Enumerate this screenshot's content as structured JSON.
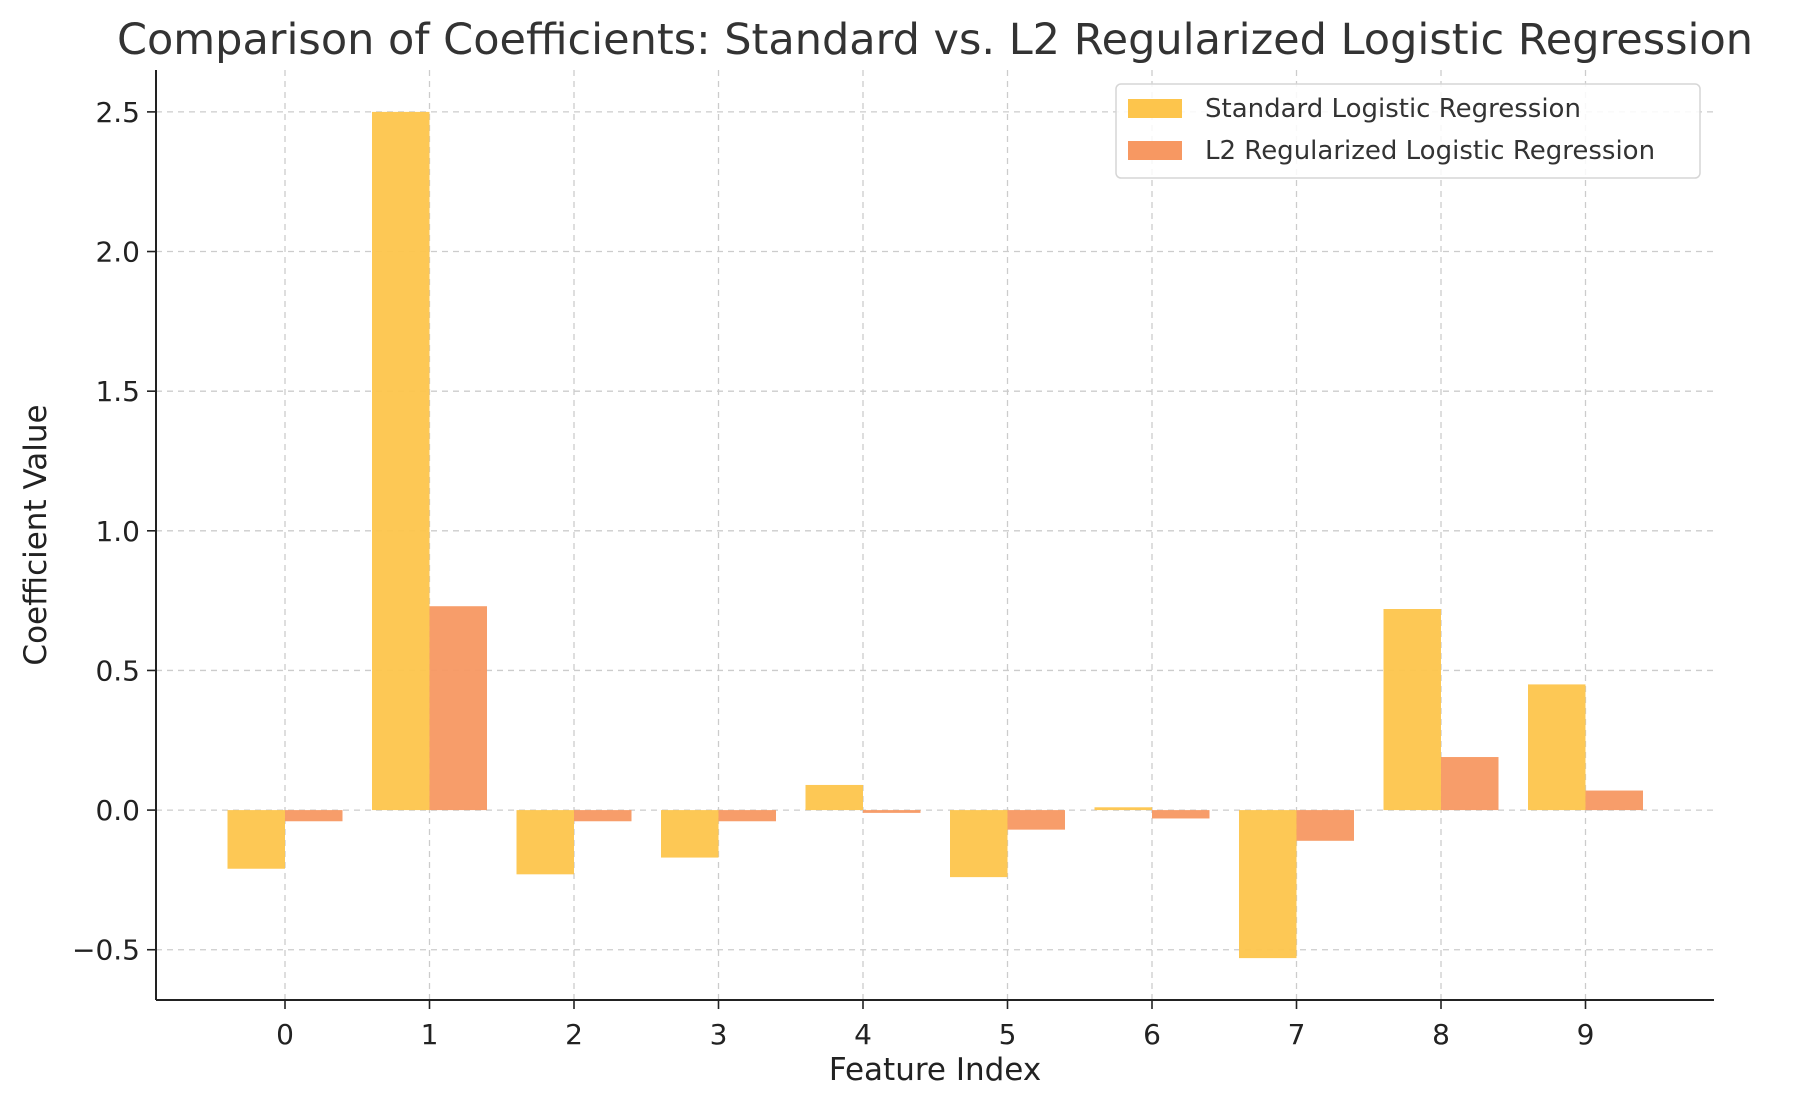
{
  "chart_data": {
    "type": "bar",
    "title": "Comparison of Coefficients: Standard vs. L2 Regularized Logistic Regression",
    "xlabel": "Feature Index",
    "ylabel": "Coefficient Value",
    "categories": [
      "0",
      "1",
      "2",
      "3",
      "4",
      "5",
      "6",
      "7",
      "8",
      "9"
    ],
    "yticks": [
      -0.5,
      0.0,
      0.5,
      1.0,
      1.5,
      2.0,
      2.5
    ],
    "ytick_labels": [
      "−0.5",
      "0.0",
      "0.5",
      "1.0",
      "1.5",
      "2.0",
      "2.5"
    ],
    "ylim": [
      -0.68,
      2.65
    ],
    "grid": true,
    "legend_position": "top-right",
    "series": [
      {
        "name": "Standard Logistic Regression",
        "color": "#FDC54C",
        "values": [
          -0.21,
          2.5,
          -0.23,
          -0.17,
          0.09,
          -0.24,
          0.01,
          -0.53,
          0.72,
          0.45
        ]
      },
      {
        "name": "L2 Regularized Logistic Regression",
        "color": "#F79862",
        "values": [
          -0.04,
          0.73,
          -0.04,
          -0.04,
          -0.01,
          -0.07,
          -0.03,
          -0.11,
          0.19,
          0.07
        ]
      }
    ]
  }
}
